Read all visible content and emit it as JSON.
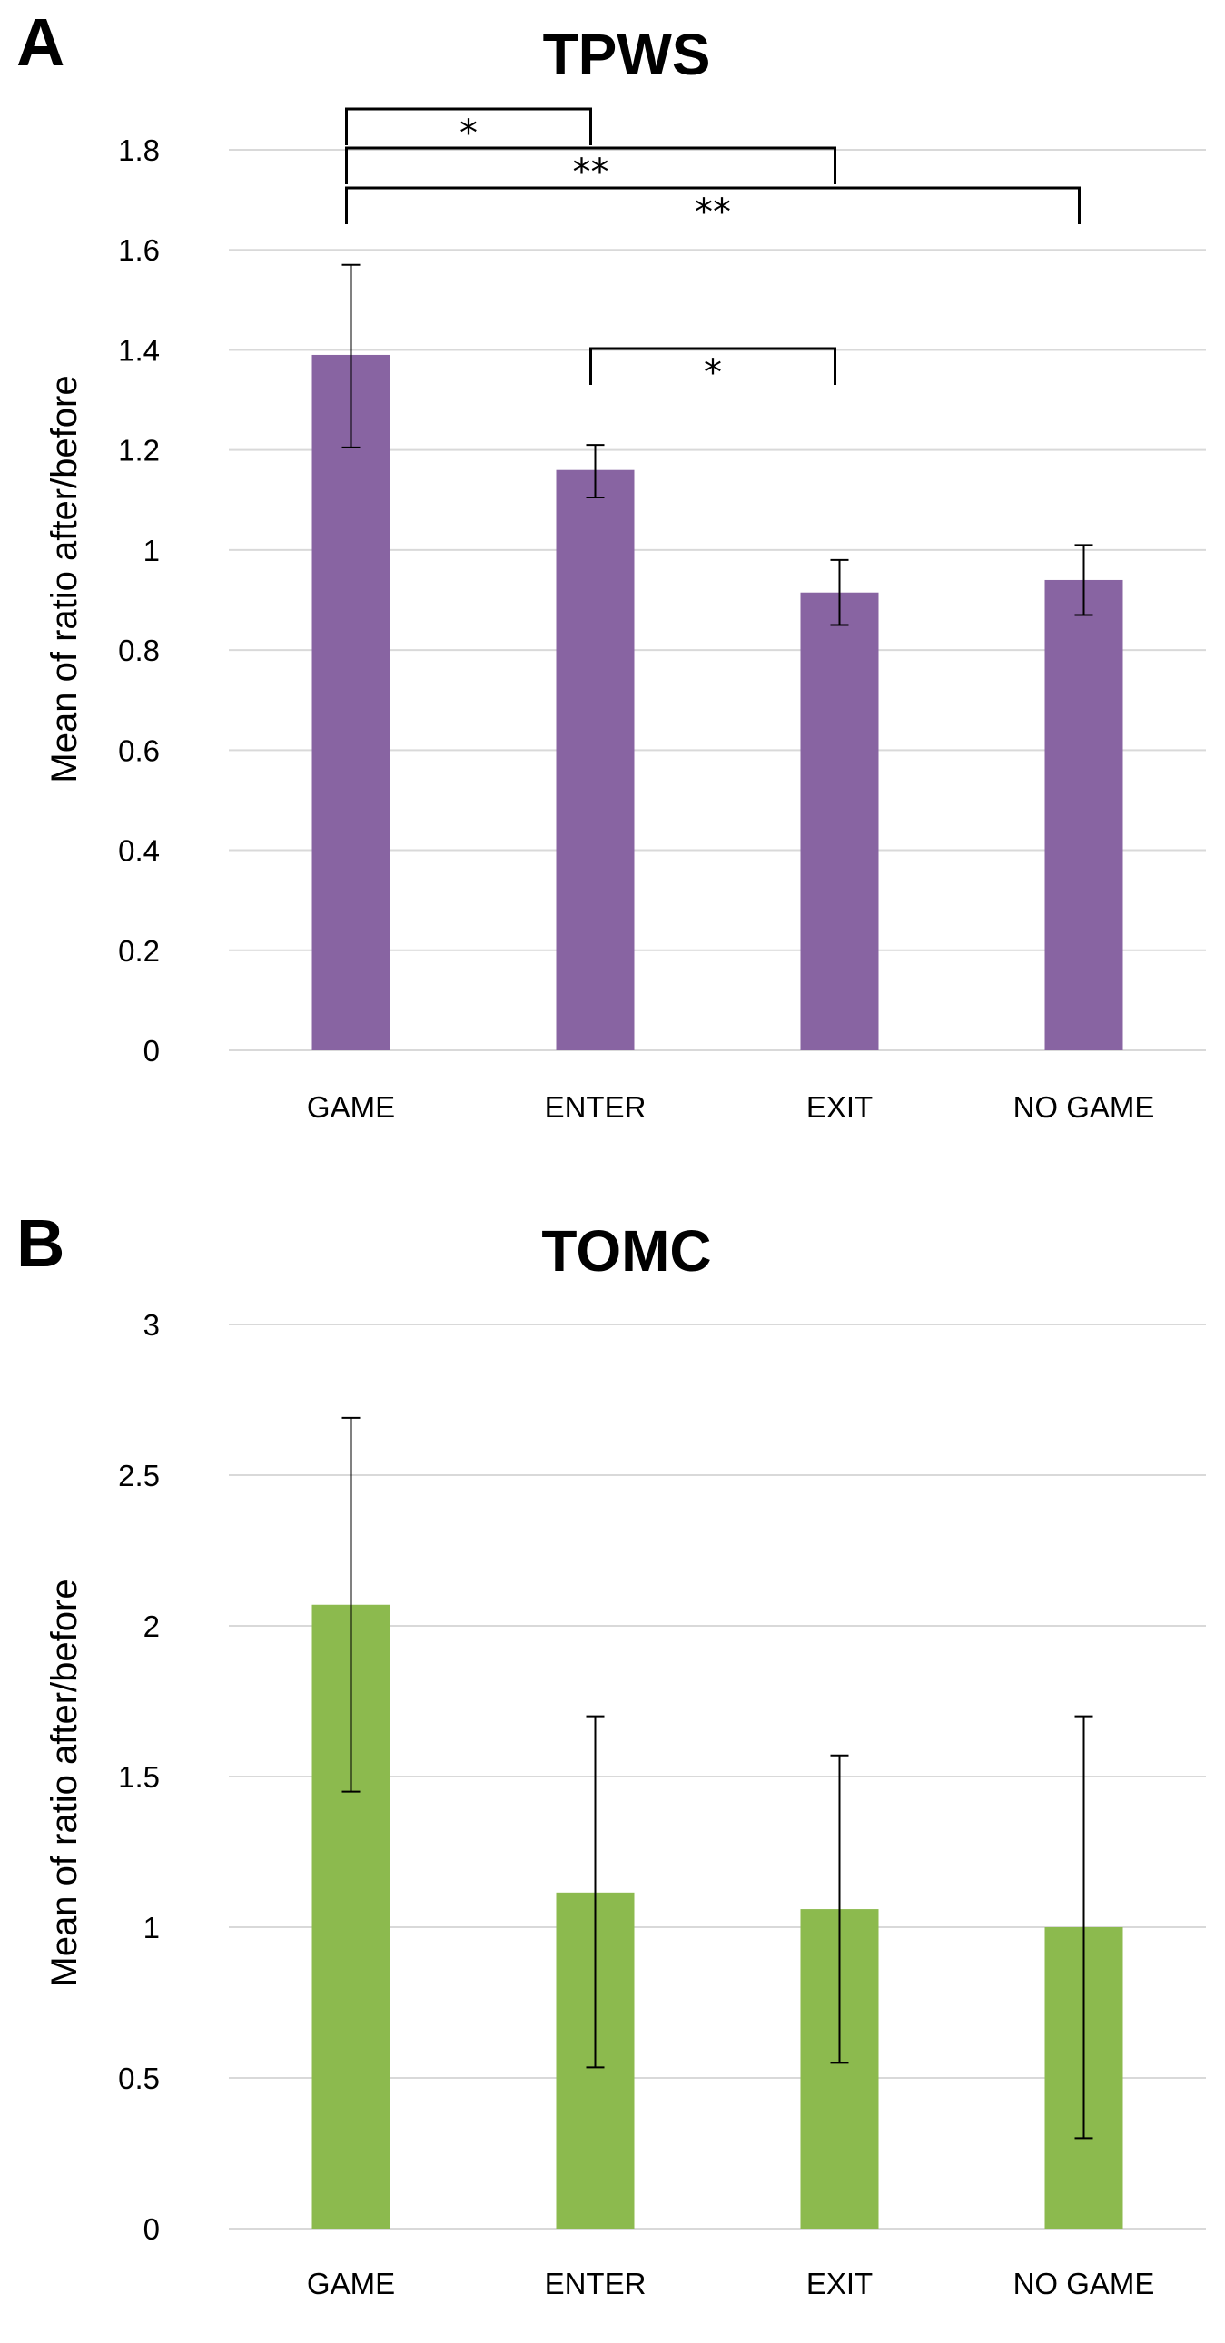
{
  "chart_data": [
    {
      "panel": "A",
      "type": "bar",
      "title": "TPWS",
      "ylabel": "Mean of ratio after/before",
      "xlabel": "",
      "categories": [
        "GAME",
        "ENTER",
        "EXIT",
        "NO GAME"
      ],
      "values": [
        1.39,
        1.16,
        0.915,
        0.94
      ],
      "error_low": [
        1.205,
        1.105,
        0.85,
        0.87
      ],
      "error_high": [
        1.57,
        1.21,
        0.98,
        1.01
      ],
      "ylim": [
        0,
        1.8
      ],
      "yticks": [
        0,
        0.2,
        0.4,
        0.6,
        0.8,
        1,
        1.2,
        1.4,
        1.6,
        1.8
      ],
      "ytick_labels": [
        "0",
        "0.2",
        "0.4",
        "0.6",
        "0.8",
        "1",
        "1.2",
        "1.4",
        "1.6",
        "1.8"
      ],
      "color": "#8864a2",
      "grid": true,
      "significance": [
        {
          "from": 0,
          "to": 1,
          "label": "*"
        },
        {
          "from": 0,
          "to": 2,
          "label": "**"
        },
        {
          "from": 0,
          "to": 3,
          "label": "**"
        },
        {
          "from": 1,
          "to": 2,
          "label": "*"
        }
      ]
    },
    {
      "panel": "B",
      "type": "bar",
      "title": "TOMC",
      "ylabel": "Mean of ratio after/before",
      "xlabel": "",
      "categories": [
        "GAME",
        "ENTER",
        "EXIT",
        "NO GAME"
      ],
      "values": [
        2.07,
        1.115,
        1.06,
        1.0
      ],
      "error_low": [
        1.45,
        0.535,
        0.55,
        0.3
      ],
      "error_high": [
        2.69,
        1.7,
        1.57,
        1.7
      ],
      "ylim": [
        0,
        3
      ],
      "yticks": [
        0,
        0.5,
        1,
        1.5,
        2,
        2.5,
        3
      ],
      "ytick_labels": [
        "0",
        "0.5",
        "1",
        "1.5",
        "2",
        "2.5",
        "3"
      ],
      "color": "#8cba4e",
      "grid": true,
      "significance": []
    }
  ]
}
